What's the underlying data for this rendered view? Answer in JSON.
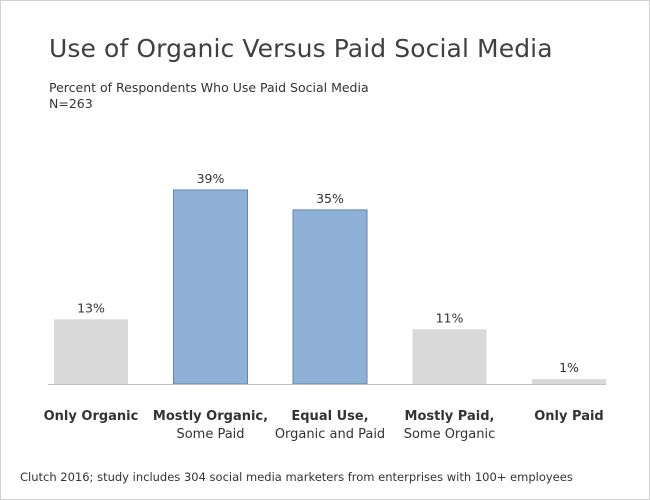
{
  "title": "Use of Organic Versus Paid Social Media",
  "subtitle_line1": "Percent of Respondents Who Use Paid Social Media",
  "subtitle_line2": "N=263",
  "footnote": "Clutch 2016; study includes 304 social media marketers from enterprises with 100+ employees",
  "colors": {
    "highlight": "#8eb1d5",
    "highlight_edge": "#5f86b3",
    "muted": "#d9d9d9"
  },
  "chart_data": {
    "type": "bar",
    "categories": [
      [
        "Only Organic"
      ],
      [
        "Mostly Organic,",
        "Some Paid"
      ],
      [
        "Equal Use,",
        "Organic and Paid"
      ],
      [
        "Mostly Paid,",
        "Some Organic"
      ],
      [
        "Only Paid"
      ]
    ],
    "values": [
      13,
      39,
      35,
      11,
      1
    ],
    "value_labels": [
      "13%",
      "39%",
      "35%",
      "11%",
      "1%"
    ],
    "highlighted": [
      false,
      true,
      true,
      false,
      false
    ],
    "ylim": [
      0,
      39
    ],
    "grid": false,
    "legend": "none"
  }
}
